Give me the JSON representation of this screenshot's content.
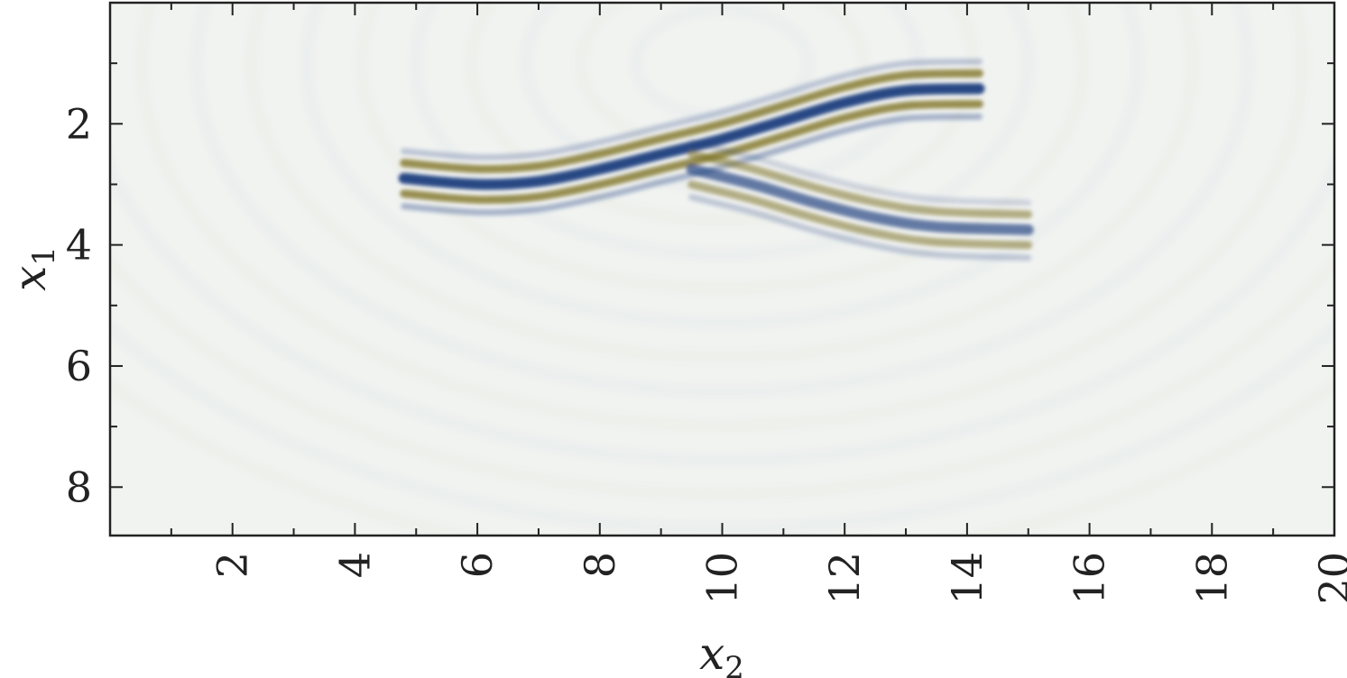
{
  "chart_data": {
    "type": "heatmap",
    "title": "",
    "xlabel": "x",
    "xlabel_sub": "2",
    "ylabel": "x",
    "ylabel_sub": "1",
    "xlim": [
      0,
      20
    ],
    "ylim": [
      8.8,
      0
    ],
    "x_ticks": [
      2,
      4,
      6,
      8,
      10,
      12,
      14,
      16,
      18,
      20
    ],
    "x_minor_ticks": [
      1,
      3,
      5,
      7,
      9,
      11,
      13,
      15,
      17,
      19
    ],
    "y_ticks": [
      2,
      4,
      6,
      8
    ],
    "y_minor_ticks": [
      1,
      3,
      5,
      7
    ],
    "grid": false,
    "colormap": [
      "#1b3f7e",
      "#ffffff",
      "#7a6e1e"
    ],
    "features": [
      {
        "name": "upper reflector",
        "x": [
          4.8,
          6,
          7,
          8,
          9,
          10,
          11,
          12,
          13,
          14.2
        ],
        "y": [
          2.9,
          3.0,
          2.95,
          2.75,
          2.5,
          2.25,
          1.95,
          1.65,
          1.45,
          1.42
        ],
        "amplitude": 1.0
      },
      {
        "name": "lower reflector",
        "x": [
          9.5,
          10.5,
          11.5,
          12.5,
          13.5,
          15.0
        ],
        "y": [
          2.75,
          3.0,
          3.3,
          3.55,
          3.7,
          3.75
        ],
        "amplitude": 0.7
      }
    ]
  }
}
